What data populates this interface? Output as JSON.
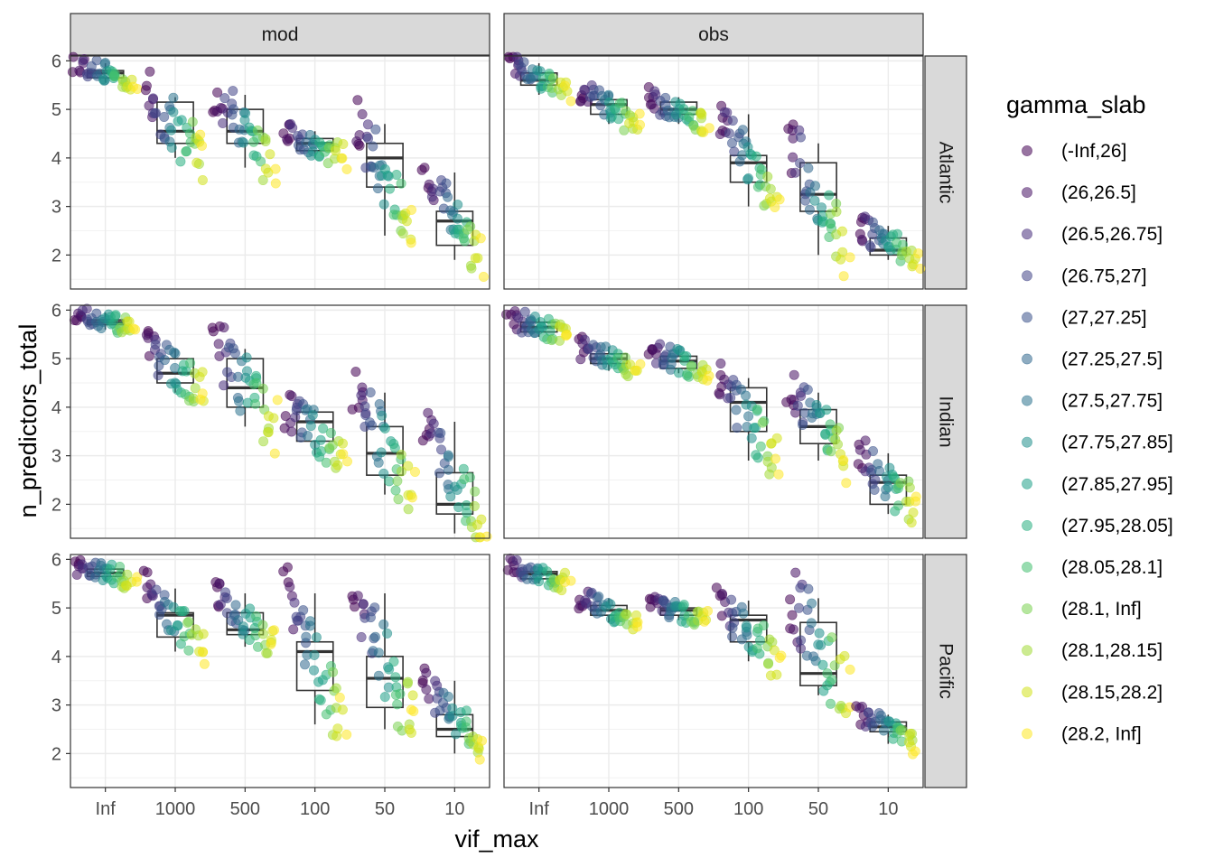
{
  "chart_data": {
    "type": "scatter",
    "subtype": "faceted jittered points with boxplots",
    "xlabel": "vif_max",
    "ylabel": "n_predictors_total",
    "x_categories": [
      "Inf",
      "1000",
      "500",
      "100",
      "50",
      "10"
    ],
    "ylim": [
      1.3,
      6.1
    ],
    "y_ticks": [
      2,
      3,
      4,
      5,
      6
    ],
    "grid": true,
    "facet_columns": [
      "mod",
      "obs"
    ],
    "facet_rows": [
      "Atlantic",
      "Indian",
      "Pacific"
    ],
    "legend": {
      "title": "gamma_slab",
      "position": "right",
      "entries": [
        {
          "label": "(-Inf,26]",
          "color": "#440154"
        },
        {
          "label": "(26,26.5]",
          "color": "#471365"
        },
        {
          "label": "(26.5,26.75]",
          "color": "#472D7B"
        },
        {
          "label": "(26.75,27]",
          "color": "#414487"
        },
        {
          "label": "(27,27.25]",
          "color": "#3B528B"
        },
        {
          "label": "(27.25,27.5]",
          "color": "#31688E"
        },
        {
          "label": "(27.5,27.75]",
          "color": "#2C728E"
        },
        {
          "label": "(27.75,27.85]",
          "color": "#21908C"
        },
        {
          "label": "(27.85,27.95]",
          "color": "#1FA088"
        },
        {
          "label": "(27.95,28.05]",
          "color": "#28AE80"
        },
        {
          "label": "(28.05,28.1]",
          "color": "#44BF70"
        },
        {
          "label": "(28.1, Inf]",
          "color": "#7AD151"
        },
        {
          "label": "(28.1,28.15]",
          "color": "#A2DA37"
        },
        {
          "label": "(28.15,28.2]",
          "color": "#D2E21B"
        },
        {
          "label": "(28.2, Inf]",
          "color": "#FDE725"
        }
      ]
    },
    "panels": [
      {
        "col": "mod",
        "row": "Atlantic",
        "boxplots": [
          {
            "x": "Inf",
            "q1": 5.65,
            "median": 5.75,
            "q3": 5.8,
            "min": 5.55,
            "max": 5.95
          },
          {
            "x": "1000",
            "q1": 4.3,
            "median": 4.55,
            "q3": 5.15,
            "min": 4.0,
            "max": 5.25
          },
          {
            "x": "500",
            "q1": 4.3,
            "median": 4.55,
            "q3": 5.0,
            "min": 3.8,
            "max": 5.3
          },
          {
            "x": "100",
            "q1": 4.15,
            "median": 4.3,
            "q3": 4.4,
            "min": 4.0,
            "max": 4.55
          },
          {
            "x": "50",
            "q1": 3.4,
            "median": 4.0,
            "q3": 4.3,
            "min": 2.4,
            "max": 4.7
          },
          {
            "x": "10",
            "q1": 2.2,
            "median": 2.7,
            "q3": 2.9,
            "min": 1.9,
            "max": 3.7
          }
        ]
      },
      {
        "col": "obs",
        "row": "Atlantic",
        "boxplots": [
          {
            "x": "Inf",
            "q1": 5.5,
            "median": 5.6,
            "q3": 5.75,
            "min": 5.3,
            "max": 5.95
          },
          {
            "x": "1000",
            "q1": 4.9,
            "median": 5.1,
            "q3": 5.2,
            "min": 4.7,
            "max": 5.35
          },
          {
            "x": "500",
            "q1": 4.9,
            "median": 5.0,
            "q3": 5.15,
            "min": 4.7,
            "max": 5.25
          },
          {
            "x": "100",
            "q1": 3.5,
            "median": 3.9,
            "q3": 4.05,
            "min": 3.0,
            "max": 4.9
          },
          {
            "x": "50",
            "q1": 2.9,
            "median": 3.25,
            "q3": 3.9,
            "min": 2.0,
            "max": 4.3
          },
          {
            "x": "10",
            "q1": 2.0,
            "median": 2.1,
            "q3": 2.35,
            "min": 1.9,
            "max": 2.6
          }
        ]
      },
      {
        "col": "mod",
        "row": "Indian",
        "boxplots": [
          {
            "x": "Inf",
            "q1": 5.7,
            "median": 5.75,
            "q3": 5.8,
            "min": 5.6,
            "max": 5.95
          },
          {
            "x": "1000",
            "q1": 4.5,
            "median": 4.7,
            "q3": 5.0,
            "min": 4.3,
            "max": 5.2
          },
          {
            "x": "500",
            "q1": 4.0,
            "median": 4.4,
            "q3": 5.0,
            "min": 3.6,
            "max": 5.2
          },
          {
            "x": "100",
            "q1": 3.3,
            "median": 3.7,
            "q3": 3.9,
            "min": 3.0,
            "max": 3.95
          },
          {
            "x": "50",
            "q1": 2.6,
            "median": 3.05,
            "q3": 3.6,
            "min": 2.2,
            "max": 4.3
          },
          {
            "x": "10",
            "q1": 1.8,
            "median": 2.0,
            "q3": 2.65,
            "min": 1.4,
            "max": 3.7
          }
        ]
      },
      {
        "col": "obs",
        "row": "Indian",
        "boxplots": [
          {
            "x": "Inf",
            "q1": 5.55,
            "median": 5.65,
            "q3": 5.75,
            "min": 5.45,
            "max": 5.85
          },
          {
            "x": "1000",
            "q1": 4.9,
            "median": 5.0,
            "q3": 5.1,
            "min": 4.75,
            "max": 5.25
          },
          {
            "x": "500",
            "q1": 4.8,
            "median": 4.95,
            "q3": 5.05,
            "min": 4.7,
            "max": 5.2
          },
          {
            "x": "100",
            "q1": 3.5,
            "median": 4.1,
            "q3": 4.4,
            "min": 2.9,
            "max": 4.6
          },
          {
            "x": "50",
            "q1": 3.25,
            "median": 3.6,
            "q3": 3.95,
            "min": 2.9,
            "max": 4.3
          },
          {
            "x": "10",
            "q1": 2.0,
            "median": 2.45,
            "q3": 2.6,
            "min": 1.8,
            "max": 3.05
          }
        ]
      },
      {
        "col": "mod",
        "row": "Pacific",
        "boxplots": [
          {
            "x": "Inf",
            "q1": 5.65,
            "median": 5.72,
            "q3": 5.8,
            "min": 5.55,
            "max": 5.9
          },
          {
            "x": "1000",
            "q1": 4.4,
            "median": 4.85,
            "q3": 4.9,
            "min": 4.1,
            "max": 5.4
          },
          {
            "x": "500",
            "q1": 4.45,
            "median": 4.55,
            "q3": 4.9,
            "min": 4.2,
            "max": 5.3
          },
          {
            "x": "100",
            "q1": 3.3,
            "median": 4.1,
            "q3": 4.3,
            "min": 2.6,
            "max": 5.3
          },
          {
            "x": "50",
            "q1": 2.95,
            "median": 3.55,
            "q3": 4.0,
            "min": 2.5,
            "max": 5.3
          },
          {
            "x": "10",
            "q1": 2.35,
            "median": 2.5,
            "q3": 2.8,
            "min": 2.0,
            "max": 3.5
          }
        ]
      },
      {
        "col": "obs",
        "row": "Pacific",
        "boxplots": [
          {
            "x": "Inf",
            "q1": 5.6,
            "median": 5.7,
            "q3": 5.75,
            "min": 5.5,
            "max": 5.85
          },
          {
            "x": "1000",
            "q1": 4.85,
            "median": 4.95,
            "q3": 5.05,
            "min": 4.7,
            "max": 5.2
          },
          {
            "x": "500",
            "q1": 4.85,
            "median": 4.95,
            "q3": 5.0,
            "min": 4.75,
            "max": 5.1
          },
          {
            "x": "100",
            "q1": 4.3,
            "median": 4.75,
            "q3": 4.85,
            "min": 3.9,
            "max": 5.15
          },
          {
            "x": "50",
            "q1": 3.4,
            "median": 3.65,
            "q3": 4.7,
            "min": 3.2,
            "max": 5.2
          },
          {
            "x": "10",
            "q1": 2.45,
            "median": 2.55,
            "q3": 2.65,
            "min": 2.2,
            "max": 2.8
          }
        ]
      }
    ]
  }
}
